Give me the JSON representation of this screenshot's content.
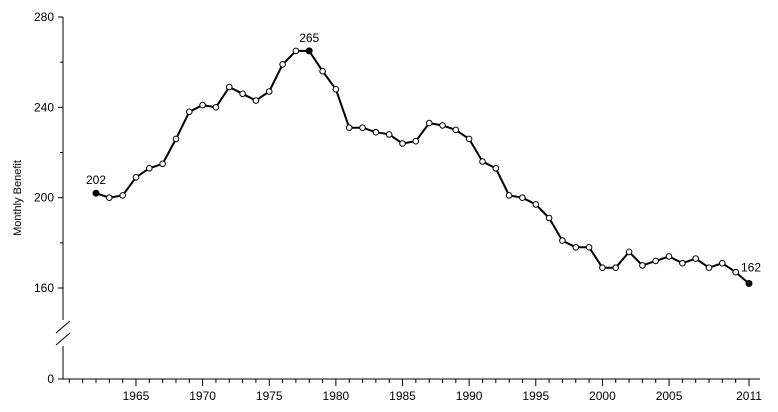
{
  "chart_data": {
    "type": "line",
    "title": "",
    "xlabel": "",
    "ylabel": "Monthly Benefit",
    "xlim": [
      1962,
      2011
    ],
    "ylim": [
      0,
      280
    ],
    "axis_break": [
      0,
      140
    ],
    "x_ticks": [
      1965,
      1970,
      1975,
      1980,
      1985,
      1990,
      1995,
      2000,
      2005,
      2011
    ],
    "y_ticks": [
      0,
      160,
      200,
      240,
      280
    ],
    "grid": false,
    "legend": "none",
    "line_color": "#000000",
    "marker": "open-circle",
    "highlight_color": "#000000",
    "series": [
      {
        "x": [
          1962,
          1963,
          1964,
          1965,
          1966,
          1967,
          1968,
          1969,
          1970,
          1971,
          1972,
          1973,
          1974,
          1975,
          1976,
          1977,
          1978,
          1979,
          1980,
          1981,
          1982,
          1983,
          1984,
          1985,
          1986,
          1987,
          1988,
          1989,
          1990,
          1991,
          1992,
          1993,
          1994,
          1995,
          1996,
          1997,
          1998,
          1999,
          2000,
          2001,
          2002,
          2003,
          2004,
          2005,
          2006,
          2007,
          2008,
          2009,
          2010,
          2011
        ],
        "values": [
          202,
          200,
          201,
          209,
          213,
          215,
          226,
          238,
          241,
          240,
          249,
          246,
          243,
          247,
          259,
          265,
          265,
          256,
          248,
          231,
          231,
          229,
          228,
          224,
          225,
          233,
          232,
          230,
          226,
          216,
          213,
          201,
          200,
          197,
          191,
          181,
          178,
          178,
          169,
          169,
          176,
          170,
          172,
          174,
          171,
          173,
          169,
          171,
          167,
          162
        ]
      }
    ],
    "annotations": [
      {
        "x": 1962,
        "y": 202,
        "label": "202"
      },
      {
        "x": 1978,
        "y": 265,
        "label": "265"
      },
      {
        "x": 2011,
        "y": 162,
        "label": "162"
      }
    ]
  }
}
